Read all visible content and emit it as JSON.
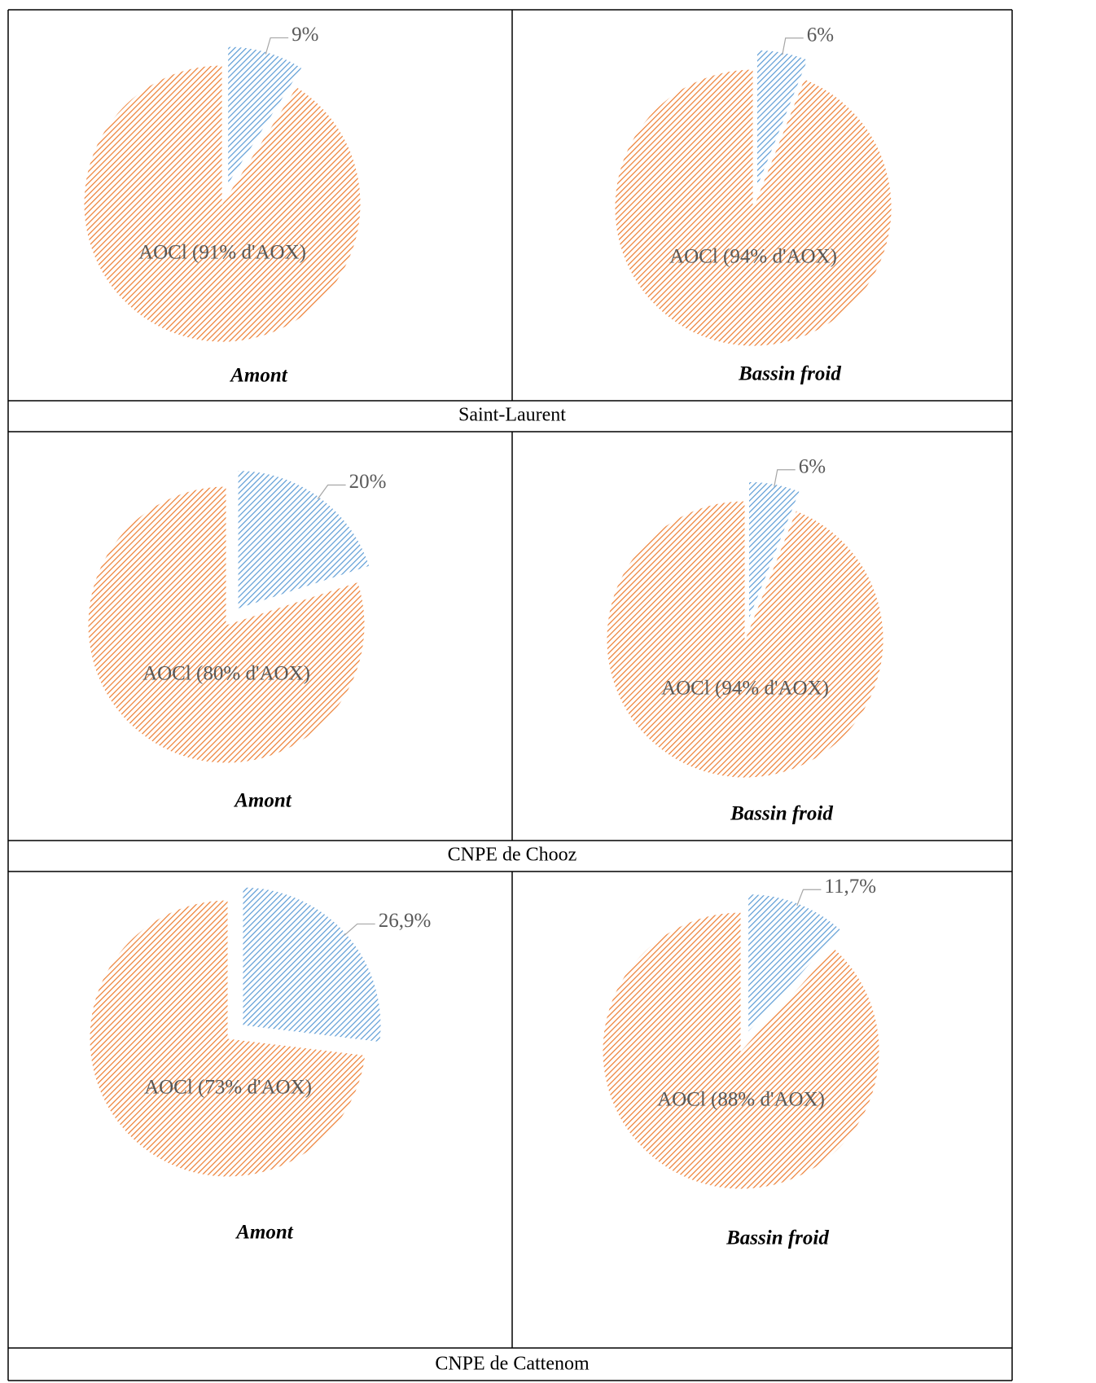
{
  "chart_data": [
    {
      "type": "pie",
      "title": "Amont",
      "values": [
        9,
        91
      ],
      "value_labels": [
        "9%",
        "AOCl (91% d'AOX)"
      ],
      "colors": [
        "#5b9bd5",
        "#ed7d31"
      ]
    },
    {
      "type": "pie",
      "title": "Bassin froid",
      "values": [
        6,
        94
      ],
      "value_labels": [
        "6%",
        "AOCl (94% d'AOX)"
      ],
      "colors": [
        "#5b9bd5",
        "#ed7d31"
      ]
    },
    {
      "type": "pie",
      "title": "Amont",
      "values": [
        20,
        80
      ],
      "value_labels": [
        "20%",
        "AOCl (80% d'AOX)"
      ],
      "colors": [
        "#5b9bd5",
        "#ed7d31"
      ]
    },
    {
      "type": "pie",
      "title": "Bassin froid",
      "values": [
        6,
        94
      ],
      "value_labels": [
        "6%",
        "AOCl (94% d'AOX)"
      ],
      "colors": [
        "#5b9bd5",
        "#ed7d31"
      ]
    },
    {
      "type": "pie",
      "title": "Amont",
      "values": [
        26.9,
        73
      ],
      "value_labels": [
        "26,9%",
        "AOCl (73% d'AOX)"
      ],
      "colors": [
        "#5b9bd5",
        "#ed7d31"
      ]
    },
    {
      "type": "pie",
      "title": "Bassin froid",
      "values": [
        11.7,
        88
      ],
      "value_labels": [
        "11,7%",
        "AOCl (88% d'AOX)"
      ],
      "colors": [
        "#5b9bd5",
        "#ed7d31"
      ]
    }
  ],
  "captions": [
    "Saint-Laurent",
    "CNPE de Chooz",
    "CNPE de Cattenom"
  ]
}
